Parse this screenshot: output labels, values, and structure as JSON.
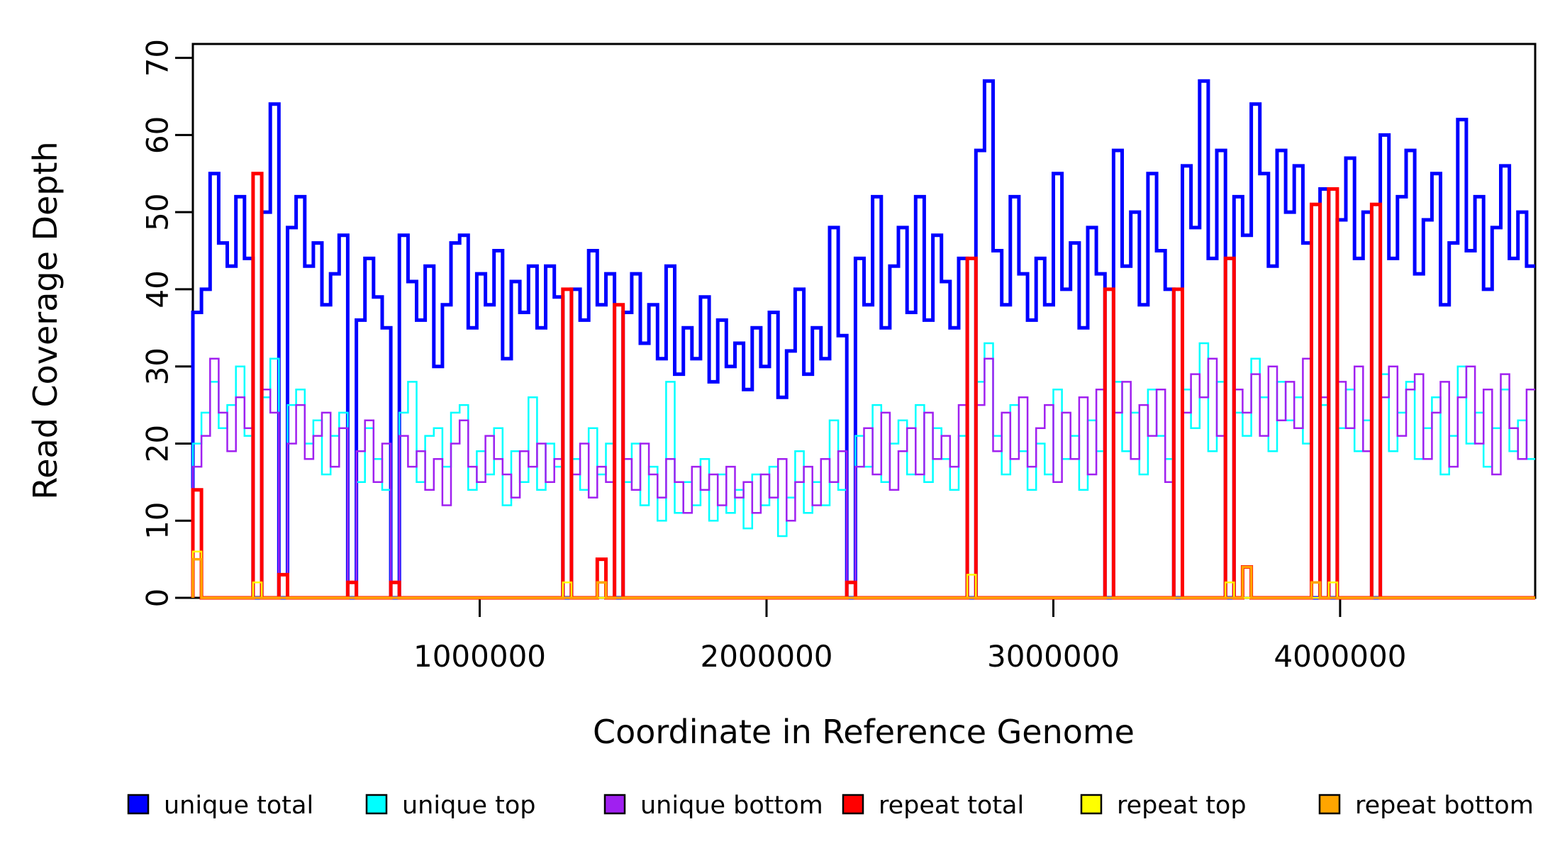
{
  "chart_data": {
    "type": "line",
    "subtype": "step",
    "title": "",
    "xlabel": "Coordinate in Reference Genome",
    "ylabel": "Read Coverage Depth",
    "xlim": [
      0,
      4680000
    ],
    "ylim": [
      0,
      71.8
    ],
    "x_start": 0,
    "bin_size": 30000,
    "x_ticks": [
      1000000,
      2000000,
      3000000,
      4000000
    ],
    "x_tick_labels": [
      "1000000",
      "2000000",
      "3000000",
      "4000000"
    ],
    "y_ticks": [
      0,
      10,
      20,
      30,
      40,
      50,
      60,
      70
    ],
    "grid": false,
    "legend_position": "bottom",
    "axis_color": "#000000",
    "series": [
      {
        "name": "unique total",
        "color": "#0000FF",
        "line_width": 5,
        "values": [
          37,
          40,
          55,
          46,
          43,
          52,
          44,
          0,
          50,
          64,
          0,
          48,
          52,
          43,
          46,
          38,
          42,
          47,
          0,
          36,
          44,
          39,
          35,
          0,
          47,
          41,
          36,
          43,
          30,
          38,
          46,
          47,
          35,
          42,
          38,
          45,
          31,
          41,
          37,
          43,
          35,
          43,
          39,
          0,
          40,
          36,
          45,
          38,
          42,
          0,
          37,
          42,
          33,
          38,
          31,
          43,
          29,
          35,
          31,
          39,
          28,
          36,
          30,
          33,
          27,
          35,
          30,
          37,
          26,
          32,
          40,
          29,
          35,
          31,
          48,
          34,
          0,
          44,
          38,
          52,
          35,
          43,
          48,
          37,
          52,
          36,
          47,
          41,
          35,
          44,
          0,
          58,
          67,
          45,
          38,
          52,
          42,
          36,
          44,
          38,
          55,
          40,
          46,
          35,
          48,
          42,
          0,
          58,
          43,
          50,
          38,
          55,
          45,
          40,
          0,
          56,
          48,
          67,
          44,
          58,
          0,
          52,
          47,
          64,
          55,
          43,
          58,
          50,
          56,
          46,
          0,
          53,
          0,
          49,
          57,
          44,
          50,
          0,
          60,
          44,
          52,
          58,
          42,
          49,
          55,
          38,
          46,
          62,
          45,
          52,
          40,
          48,
          56,
          44,
          50,
          43
        ]
      },
      {
        "name": "unique top",
        "color": "#00FFFF",
        "line_width": 2.5,
        "values": [
          20,
          24,
          28,
          22,
          25,
          30,
          21,
          0,
          26,
          31,
          0,
          25,
          27,
          20,
          23,
          16,
          21,
          24,
          0,
          15,
          22,
          18,
          14,
          0,
          24,
          28,
          15,
          21,
          22,
          17,
          24,
          25,
          14,
          19,
          16,
          22,
          12,
          19,
          15,
          26,
          14,
          20,
          17,
          0,
          18,
          14,
          22,
          16,
          20,
          0,
          15,
          20,
          12,
          17,
          10,
          28,
          11,
          15,
          12,
          18,
          10,
          16,
          11,
          14,
          9,
          16,
          12,
          17,
          8,
          13,
          19,
          11,
          15,
          12,
          23,
          14,
          0,
          21,
          17,
          25,
          15,
          20,
          23,
          16,
          25,
          15,
          22,
          18,
          14,
          21,
          0,
          28,
          33,
          21,
          16,
          25,
          19,
          14,
          20,
          16,
          27,
          18,
          21,
          14,
          23,
          19,
          0,
          28,
          19,
          24,
          16,
          27,
          21,
          18,
          0,
          27,
          22,
          33,
          19,
          28,
          0,
          24,
          21,
          31,
          26,
          19,
          28,
          23,
          26,
          20,
          0,
          25,
          0,
          22,
          27,
          19,
          23,
          0,
          29,
          19,
          24,
          28,
          18,
          22,
          26,
          16,
          21,
          30,
          20,
          24,
          17,
          22,
          27,
          19,
          23,
          18
        ]
      },
      {
        "name": "unique bottom",
        "color": "#A020F0",
        "line_width": 2.5,
        "values": [
          17,
          21,
          31,
          24,
          19,
          26,
          22,
          0,
          27,
          24,
          0,
          20,
          25,
          18,
          21,
          24,
          17,
          22,
          0,
          19,
          23,
          15,
          20,
          0,
          21,
          17,
          19,
          14,
          18,
          12,
          20,
          23,
          17,
          15,
          21,
          18,
          16,
          13,
          19,
          17,
          20,
          15,
          18,
          0,
          16,
          20,
          13,
          17,
          15,
          0,
          18,
          14,
          20,
          16,
          13,
          18,
          15,
          11,
          17,
          14,
          16,
          12,
          17,
          13,
          15,
          11,
          16,
          13,
          18,
          10,
          15,
          17,
          12,
          18,
          15,
          19,
          0,
          17,
          22,
          16,
          24,
          14,
          19,
          22,
          16,
          24,
          18,
          21,
          17,
          25,
          0,
          25,
          31,
          19,
          24,
          18,
          26,
          17,
          22,
          25,
          15,
          24,
          18,
          26,
          16,
          27,
          0,
          24,
          28,
          18,
          25,
          21,
          27,
          15,
          0,
          24,
          29,
          26,
          31,
          21,
          0,
          27,
          24,
          29,
          21,
          30,
          23,
          28,
          22,
          31,
          0,
          26,
          0,
          28,
          22,
          30,
          19,
          0,
          26,
          30,
          21,
          27,
          29,
          18,
          24,
          28,
          17,
          26,
          30,
          20,
          27,
          16,
          29,
          22,
          18,
          27
        ]
      },
      {
        "name": "repeat total",
        "color": "#FF0000",
        "line_width": 5,
        "values": [
          14,
          0,
          0,
          0,
          0,
          0,
          0,
          55,
          0,
          0,
          3,
          0,
          0,
          0,
          0,
          0,
          0,
          0,
          2,
          0,
          0,
          0,
          0,
          2,
          0,
          0,
          0,
          0,
          0,
          0,
          0,
          0,
          0,
          0,
          0,
          0,
          0,
          0,
          0,
          0,
          0,
          0,
          0,
          40,
          0,
          0,
          0,
          5,
          0,
          38,
          0,
          0,
          0,
          0,
          0,
          0,
          0,
          0,
          0,
          0,
          0,
          0,
          0,
          0,
          0,
          0,
          0,
          0,
          0,
          0,
          0,
          0,
          0,
          0,
          0,
          0,
          2,
          0,
          0,
          0,
          0,
          0,
          0,
          0,
          0,
          0,
          0,
          0,
          0,
          0,
          44,
          0,
          0,
          0,
          0,
          0,
          0,
          0,
          0,
          0,
          0,
          0,
          0,
          0,
          0,
          0,
          40,
          0,
          0,
          0,
          0,
          0,
          0,
          0,
          40,
          0,
          0,
          0,
          0,
          0,
          44,
          0,
          4,
          0,
          0,
          0,
          0,
          0,
          0,
          0,
          51,
          0,
          53,
          0,
          0,
          0,
          0,
          51,
          0,
          0,
          0,
          0,
          0,
          0,
          0,
          0,
          0,
          0,
          0,
          0,
          0,
          0,
          0,
          0,
          0,
          0
        ]
      },
      {
        "name": "repeat top",
        "color": "#FFFF00",
        "line_width": 2.5,
        "values": [
          6,
          0,
          0,
          0,
          0,
          0,
          0,
          2,
          0,
          0,
          0,
          0,
          0,
          0,
          0,
          0,
          0,
          0,
          0,
          0,
          0,
          0,
          0,
          0,
          0,
          0,
          0,
          0,
          0,
          0,
          0,
          0,
          0,
          0,
          0,
          0,
          0,
          0,
          0,
          0,
          0,
          0,
          0,
          2,
          0,
          0,
          0,
          0,
          0,
          0,
          0,
          0,
          0,
          0,
          0,
          0,
          0,
          0,
          0,
          0,
          0,
          0,
          0,
          0,
          0,
          0,
          0,
          0,
          0,
          0,
          0,
          0,
          0,
          0,
          0,
          0,
          0,
          0,
          0,
          0,
          0,
          0,
          0,
          0,
          0,
          0,
          0,
          0,
          0,
          0,
          3,
          0,
          0,
          0,
          0,
          0,
          0,
          0,
          0,
          0,
          0,
          0,
          0,
          0,
          0,
          0,
          0,
          0,
          0,
          0,
          0,
          0,
          0,
          0,
          0,
          0,
          0,
          0,
          0,
          0,
          2,
          0,
          0,
          0,
          0,
          0,
          0,
          0,
          0,
          0,
          0,
          0,
          2,
          0,
          0,
          0,
          0,
          0,
          0,
          0,
          0,
          0,
          0,
          0,
          0,
          0,
          0,
          0,
          0,
          0,
          0,
          0,
          0,
          0,
          0,
          0
        ]
      },
      {
        "name": "repeat bottom",
        "color": "#FFA500",
        "line_width": 3.5,
        "values": [
          5,
          0,
          0,
          0,
          0,
          0,
          0,
          0,
          0,
          0,
          0,
          0,
          0,
          0,
          0,
          0,
          0,
          0,
          0,
          0,
          0,
          0,
          0,
          0,
          0,
          0,
          0,
          0,
          0,
          0,
          0,
          0,
          0,
          0,
          0,
          0,
          0,
          0,
          0,
          0,
          0,
          0,
          0,
          0,
          0,
          0,
          0,
          2,
          0,
          0,
          0,
          0,
          0,
          0,
          0,
          0,
          0,
          0,
          0,
          0,
          0,
          0,
          0,
          0,
          0,
          0,
          0,
          0,
          0,
          0,
          0,
          0,
          0,
          0,
          0,
          0,
          0,
          0,
          0,
          0,
          0,
          0,
          0,
          0,
          0,
          0,
          0,
          0,
          0,
          0,
          0,
          0,
          0,
          0,
          0,
          0,
          0,
          0,
          0,
          0,
          0,
          0,
          0,
          0,
          0,
          0,
          0,
          0,
          0,
          0,
          0,
          0,
          0,
          0,
          0,
          0,
          0,
          0,
          0,
          0,
          0,
          0,
          4,
          0,
          0,
          0,
          0,
          0,
          0,
          0,
          2,
          0,
          0,
          0,
          0,
          0,
          0,
          0,
          0,
          0,
          0,
          0,
          0,
          0,
          0,
          0,
          0,
          0,
          0,
          0,
          0,
          0,
          0,
          0,
          0,
          0
        ]
      }
    ]
  }
}
